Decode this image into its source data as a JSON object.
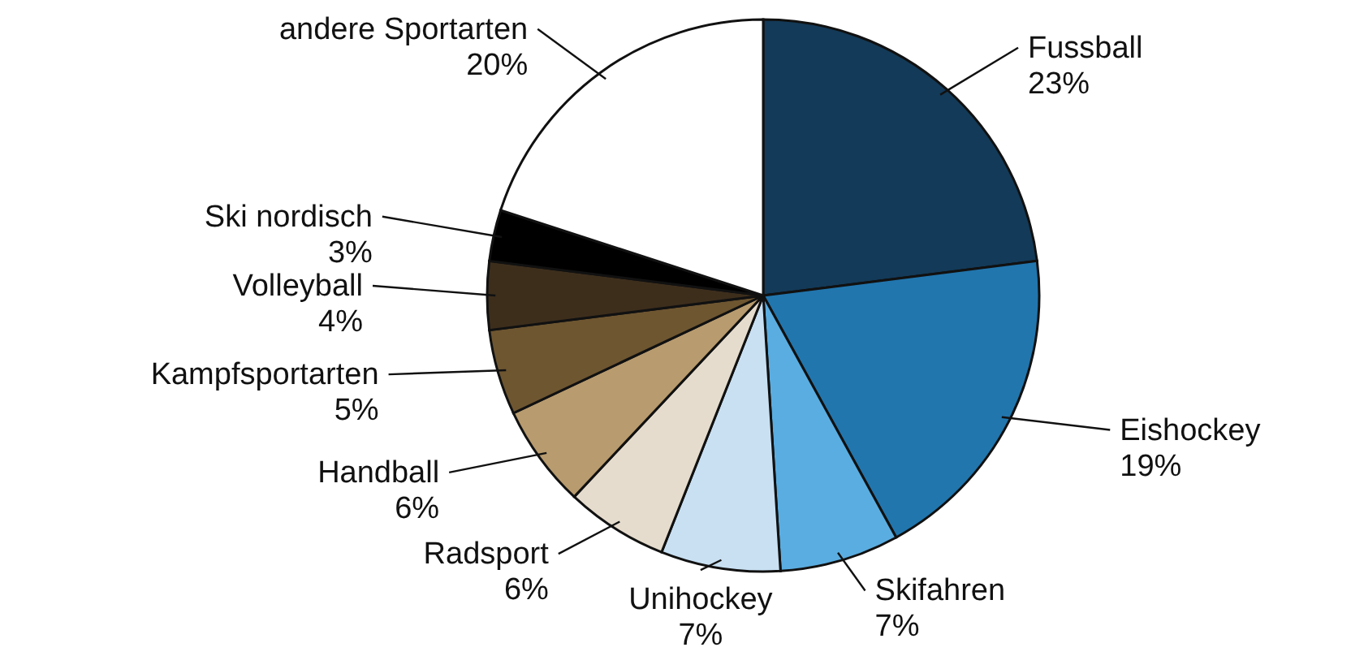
{
  "chart_data": {
    "type": "pie",
    "categories": [
      "Fussball",
      "Eishockey",
      "Skifahren",
      "Unihockey",
      "Radsport",
      "Handball",
      "Kampfsportarten",
      "Volleyball",
      "Ski nordisch",
      "andere Sportarten"
    ],
    "values": [
      23,
      19,
      7,
      7,
      6,
      6,
      5,
      4,
      3,
      20
    ],
    "value_labels": [
      "23%",
      "19%",
      "7%",
      "7%",
      "6%",
      "6%",
      "5%",
      "4%",
      "3%",
      "20%"
    ],
    "colors": [
      "#133a58",
      "#2176ae",
      "#5aade0",
      "#c8e0f2",
      "#e6dccd",
      "#b89b6e",
      "#6e5631",
      "#3d2e1c",
      "#000000",
      "#ffffff"
    ]
  }
}
